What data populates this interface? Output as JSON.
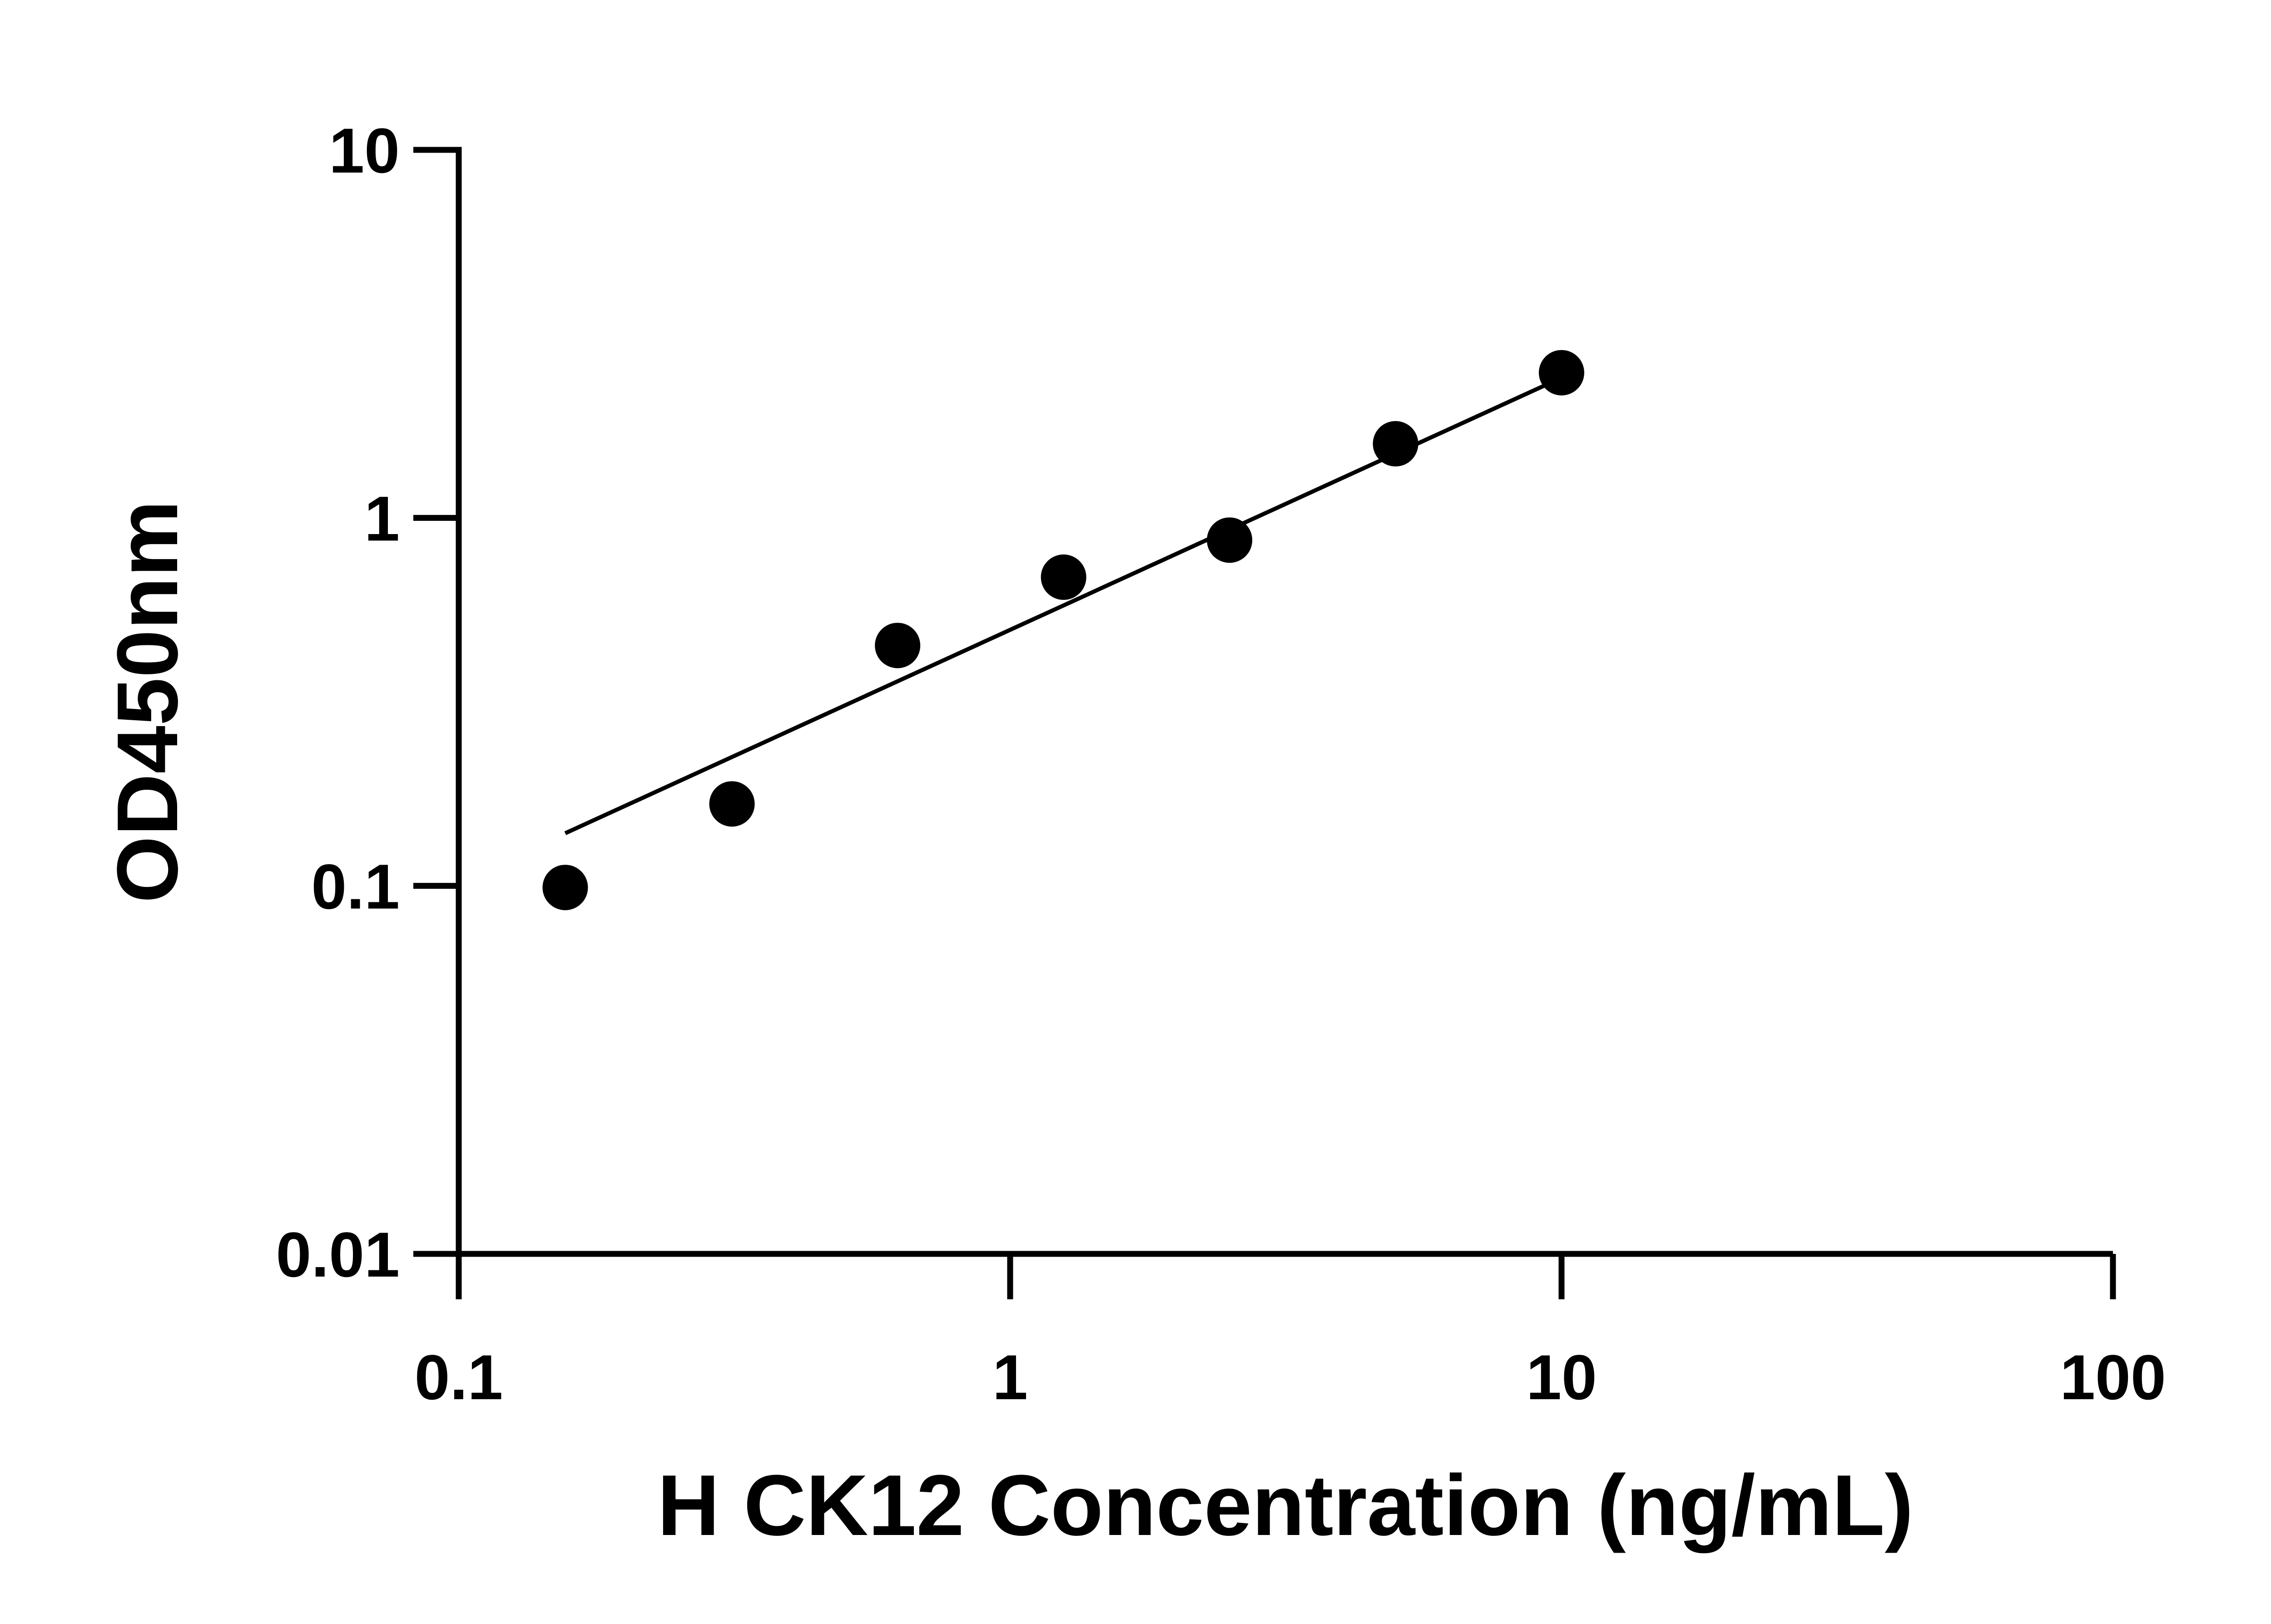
{
  "chart_data": {
    "type": "scatter",
    "title": "",
    "xlabel": "H CK12 Concentration (ng/mL)",
    "ylabel": "OD450nm",
    "x_scale": "log",
    "y_scale": "log",
    "xlim": [
      0.1,
      100
    ],
    "ylim": [
      0.01,
      10
    ],
    "x_ticks": [
      "0.1",
      "1",
      "10",
      "100"
    ],
    "y_ticks": [
      "0.01",
      "0.1",
      "1",
      "10"
    ],
    "grid": false,
    "legend": "none",
    "points": {
      "x": [
        0.156,
        0.313,
        0.625,
        1.25,
        2.5,
        5,
        10
      ],
      "y": [
        0.099,
        0.167,
        0.45,
        0.69,
        0.87,
        1.59,
        2.48
      ]
    },
    "fit_line": {
      "x": [
        0.156,
        9.5
      ],
      "y": [
        0.139,
        2.32
      ]
    },
    "colors": {
      "marker": "#000000",
      "line": "#000000",
      "axis": "#000000"
    }
  }
}
